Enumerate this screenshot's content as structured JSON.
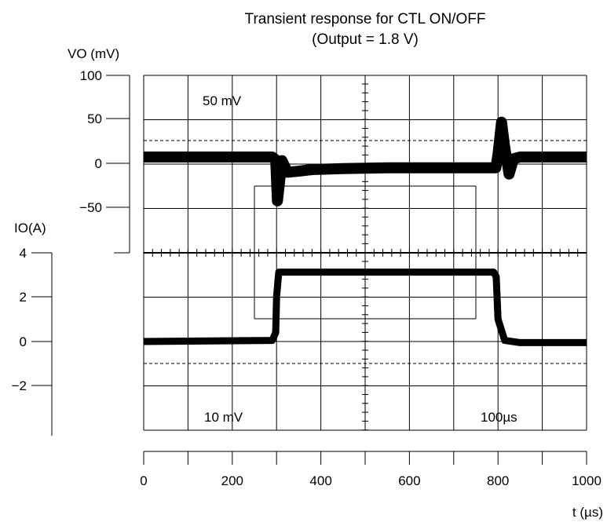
{
  "chart_data": {
    "type": "line",
    "title": "Transient response for CTL ON/OFF",
    "subtitle": "(Output = 1.8 V)",
    "ylabel_top": "VO (mV)",
    "ylabel_bottom": "IO(A)",
    "xlabel": "t (µs)",
    "x_ticks": [
      "0",
      "200",
      "400",
      "600",
      "800",
      "1000"
    ],
    "xlim": [
      0,
      1000
    ],
    "y_top_ticks": [
      "100",
      "50",
      "0",
      "−50"
    ],
    "y_top_lim": [
      -100,
      100
    ],
    "y_bottom_ticks": [
      "4",
      "2",
      "0",
      "−2"
    ],
    "y_bottom_lim": [
      -4,
      4
    ],
    "scope_labels": {
      "ch1_scale": "50 mV",
      "ch2_scale": "10 mV",
      "time_scale": "100µs"
    },
    "grid": true,
    "series": [
      {
        "x": [
          0,
          290,
          298,
          302,
          312,
          325,
          345,
          380,
          450,
          550,
          650,
          795,
          800,
          808,
          815,
          825,
          835,
          850,
          900,
          1000
        ],
        "values": [
          7,
          7,
          4,
          -42,
          3,
          -10,
          -9,
          -7,
          -6,
          -5,
          -5,
          -5,
          10,
          46,
          18,
          -12,
          5,
          7,
          7,
          7
        ]
      },
      {
        "x": [
          0,
          290,
          298,
          300,
          305,
          500,
          790,
          796,
          800,
          815,
          850,
          1000
        ],
        "values": [
          0.0,
          0.05,
          0.4,
          2.0,
          3.1,
          3.1,
          3.1,
          2.9,
          1.0,
          0.05,
          -0.05,
          -0.05
        ]
      }
    ]
  }
}
